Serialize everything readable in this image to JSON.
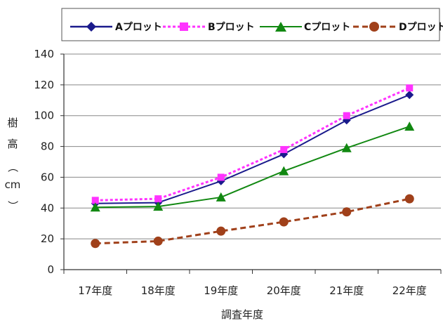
{
  "chart_data": {
    "type": "line",
    "categories": [
      "17年度",
      "18年度",
      "19年度",
      "20年度",
      "21年度",
      "22年度"
    ],
    "series": [
      {
        "name": "Aプロット",
        "values": [
          43,
          43.5,
          57.5,
          75,
          97,
          113.5
        ],
        "color": "#1a1a8c",
        "dash": "solid",
        "marker": "diamond"
      },
      {
        "name": "Bプロット",
        "values": [
          45,
          46,
          60,
          78,
          100,
          118
        ],
        "color": "#ff33ff",
        "dash": "dotted",
        "marker": "square"
      },
      {
        "name": "Cプロット",
        "values": [
          40.5,
          41,
          47,
          64,
          79,
          93
        ],
        "color": "#118811",
        "dash": "solid",
        "marker": "triangle"
      },
      {
        "name": "Dプロット",
        "values": [
          17,
          18.5,
          25,
          31,
          37.5,
          46
        ],
        "color": "#a0401a",
        "dash": "dashed",
        "marker": "circle"
      }
    ],
    "ylim": [
      0,
      140
    ],
    "yticks": [
      0,
      20,
      40,
      60,
      80,
      100,
      120,
      140
    ],
    "xlabel": "調査年度",
    "ylabel_chars": [
      "樹",
      "高",
      "（",
      "cm",
      "）"
    ],
    "grid": "horizontal",
    "legend_position": "top"
  }
}
